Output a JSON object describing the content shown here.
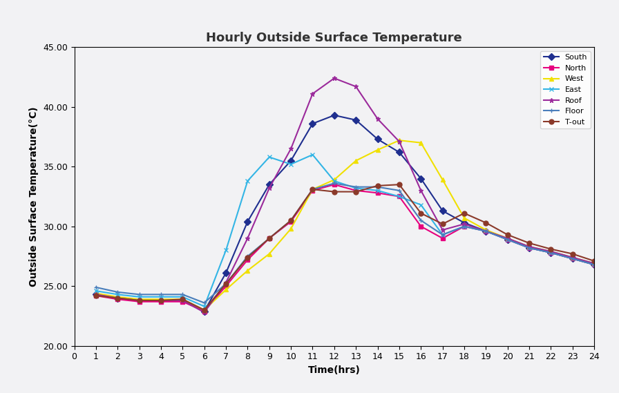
{
  "chart_data": {
    "type": "line",
    "title": "Hourly Outside Surface Temperature",
    "x_label": "Time(hrs)",
    "y_label": "Outside Surface Temperature(°C)",
    "x": [
      1,
      2,
      3,
      4,
      5,
      6,
      7,
      8,
      9,
      10,
      11,
      12,
      13,
      14,
      15,
      16,
      17,
      18,
      19,
      20,
      21,
      22,
      23,
      24
    ],
    "series": [
      {
        "name": "South",
        "color": "#1f2f8f",
        "marker": "diamond",
        "values": [
          24.3,
          24.0,
          23.8,
          23.8,
          23.8,
          22.9,
          26.1,
          30.4,
          33.5,
          35.5,
          38.6,
          39.3,
          38.9,
          37.3,
          36.2,
          34.0,
          31.3,
          30.3,
          29.6,
          28.9,
          28.2,
          27.8,
          27.3,
          26.8
        ]
      },
      {
        "name": "North",
        "color": "#e6007e",
        "marker": "square",
        "values": [
          24.2,
          23.9,
          23.7,
          23.7,
          23.7,
          22.9,
          25.0,
          27.2,
          29.0,
          30.4,
          33.0,
          33.5,
          33.0,
          32.8,
          32.5,
          30.0,
          29.0,
          30.0,
          29.6,
          28.9,
          28.2,
          27.8,
          27.3,
          26.8
        ]
      },
      {
        "name": "West",
        "color": "#f0e000",
        "marker": "triangle",
        "values": [
          24.4,
          24.1,
          23.9,
          23.9,
          23.9,
          23.0,
          24.7,
          26.3,
          27.7,
          29.8,
          33.1,
          33.9,
          35.5,
          36.4,
          37.2,
          37.0,
          33.9,
          30.7,
          29.7,
          29.0,
          28.3,
          27.9,
          27.4,
          26.9
        ]
      },
      {
        "name": "East",
        "color": "#33b5e5",
        "marker": "x",
        "values": [
          24.6,
          24.3,
          24.1,
          24.1,
          24.1,
          23.3,
          28.0,
          33.8,
          35.8,
          35.2,
          36.0,
          33.8,
          33.2,
          33.0,
          32.5,
          31.8,
          29.3,
          30.0,
          29.6,
          28.9,
          28.2,
          27.8,
          27.3,
          26.8
        ]
      },
      {
        "name": "Roof",
        "color": "#9b2a9b",
        "marker": "star",
        "values": [
          24.3,
          24.0,
          23.8,
          23.8,
          23.8,
          22.8,
          25.3,
          29.0,
          33.2,
          36.5,
          41.1,
          42.4,
          41.7,
          39.0,
          37.1,
          33.0,
          29.7,
          30.2,
          29.6,
          29.0,
          28.3,
          27.9,
          27.4,
          26.9
        ]
      },
      {
        "name": "Floor",
        "color": "#4a7ebb",
        "marker": "plus",
        "values": [
          24.9,
          24.5,
          24.3,
          24.3,
          24.3,
          23.6,
          25.2,
          27.5,
          29.0,
          30.5,
          33.1,
          33.6,
          33.3,
          33.3,
          33.0,
          30.5,
          29.3,
          30.0,
          29.6,
          28.9,
          28.2,
          27.8,
          27.3,
          26.8
        ]
      },
      {
        "name": "T-out",
        "color": "#8b3a2a",
        "marker": "circle",
        "values": [
          24.2,
          24.0,
          23.8,
          23.8,
          23.9,
          23.0,
          25.2,
          27.4,
          29.0,
          30.5,
          33.1,
          32.9,
          32.9,
          33.4,
          33.5,
          31.1,
          30.2,
          31.1,
          30.3,
          29.3,
          28.6,
          28.1,
          27.7,
          27.1
        ]
      }
    ],
    "xlim": [
      0,
      24
    ],
    "xticks": [
      0,
      1,
      2,
      3,
      4,
      5,
      6,
      7,
      8,
      9,
      10,
      11,
      12,
      13,
      14,
      15,
      16,
      17,
      18,
      19,
      20,
      21,
      22,
      23,
      24
    ],
    "ylim": [
      20,
      45
    ],
    "yticks": [
      {
        "value": 20,
        "label": "20.00"
      },
      {
        "value": 25,
        "label": "25.00"
      },
      {
        "value": 30,
        "label": "30.00"
      },
      {
        "value": 35,
        "label": "35.00"
      },
      {
        "value": 40,
        "label": "40.00"
      },
      {
        "value": 45,
        "label": "45.00"
      }
    ],
    "grid": false,
    "legend": "upper right"
  }
}
